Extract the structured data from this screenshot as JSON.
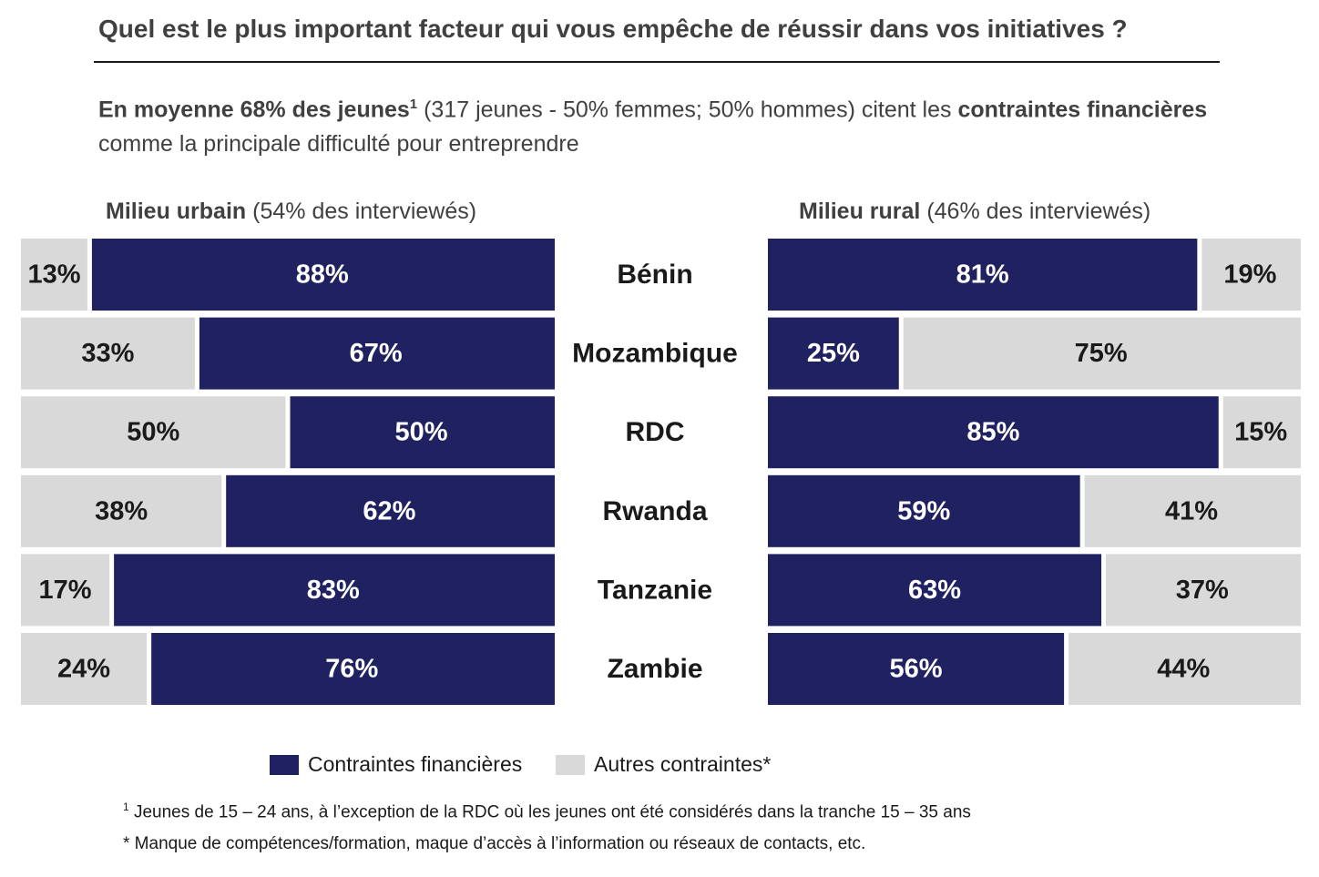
{
  "title": "Quel est le plus important facteur qui vous empêche de réussir dans vos initiatives ?",
  "subtitle": {
    "bold1": "En moyenne 68% des jeunes",
    "sup": "1",
    "normal1": " (317 jeunes - 50% femmes; 50% hommes) citent les ",
    "bold2": "contraintes financières",
    "normal2": " comme la principale difficulté pour entreprendre"
  },
  "panels": {
    "urban": {
      "bold": "Milieu urbain",
      "normal": " (54% des interviewés)"
    },
    "rural": {
      "bold": "Milieu rural",
      "normal": " (46% des interviewés)"
    }
  },
  "colors": {
    "financial": "#1f2160",
    "other": "#d9d9d9",
    "label_dark": "#1a1a1a",
    "label_light": "#ffffff"
  },
  "chart_data": {
    "type": "bar",
    "orientation": "horizontal",
    "stacked": true,
    "normalized": true,
    "categories": [
      "Bénin",
      "Mozambique",
      "RDC",
      "Rwanda",
      "Tanzanie",
      "Zambie"
    ],
    "urban": {
      "series": [
        {
          "name": "Contraintes financières",
          "values": [
            88,
            67,
            50,
            62,
            83,
            76
          ],
          "labels": [
            "88%",
            "67%",
            "50%",
            "62%",
            "83%",
            "76%"
          ]
        },
        {
          "name": "Autres contraintes*",
          "values": [
            13,
            33,
            50,
            38,
            17,
            24
          ],
          "labels": [
            "13%",
            "33%",
            "50%",
            "38%",
            "17%",
            "24%"
          ]
        }
      ]
    },
    "rural": {
      "series": [
        {
          "name": "Contraintes financières",
          "values": [
            81,
            25,
            85,
            59,
            63,
            56
          ],
          "labels": [
            "81%",
            "25%",
            "85%",
            "59%",
            "63%",
            "56%"
          ]
        },
        {
          "name": "Autres contraintes*",
          "values": [
            19,
            75,
            15,
            41,
            37,
            44
          ],
          "labels": [
            "19%",
            "75%",
            "15%",
            "41%",
            "37%",
            "44%"
          ]
        }
      ]
    },
    "legend": [
      "Contraintes financières",
      "Autres contraintes*"
    ],
    "xlim": [
      0,
      100
    ]
  },
  "legend": {
    "financial": "Contraintes financières",
    "other": "Autres contraintes*"
  },
  "footnotes": {
    "sup": "1",
    "note1": " Jeunes de 15 – 24 ans, à l’exception de la RDC où les jeunes ont été considérés dans la tranche 15 – 35 ans",
    "note2": "* Manque de compétences/formation,  maque d’accès à l’information ou réseaux de contacts, etc."
  }
}
